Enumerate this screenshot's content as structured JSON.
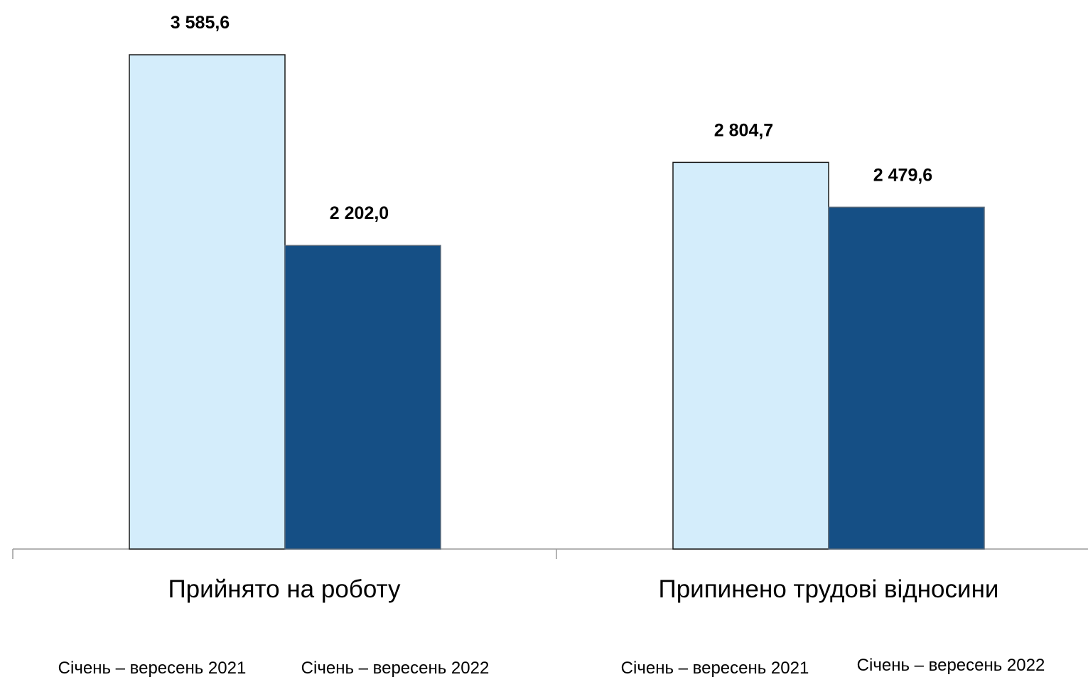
{
  "chart_data": {
    "type": "bar",
    "title": "",
    "xlabel": "",
    "ylabel": "",
    "categories": [
      "Прийнято на роботу",
      "Припинено трудові відносини"
    ],
    "series": [
      {
        "name": "Січень – вересень 2021",
        "color": "#d4edfb",
        "values": [
          3585.6,
          2804.7
        ],
        "labels": [
          "3 585,6",
          "2 804,7"
        ]
      },
      {
        "name": "Січень – вересень 2022",
        "color": "#154f85",
        "values": [
          2202.0,
          2479.6
        ],
        "labels": [
          "2 202,0",
          "2 479,6"
        ]
      }
    ],
    "ylim": [
      0,
      4000
    ],
    "grid": false,
    "legend": "bottom",
    "series_labels_under_each_category": [
      [
        "Січень – вересень 2021",
        "Січень – вересень 2022"
      ],
      [
        "Січень – вересень 2021",
        "Січень – вересень 2022"
      ]
    ]
  }
}
